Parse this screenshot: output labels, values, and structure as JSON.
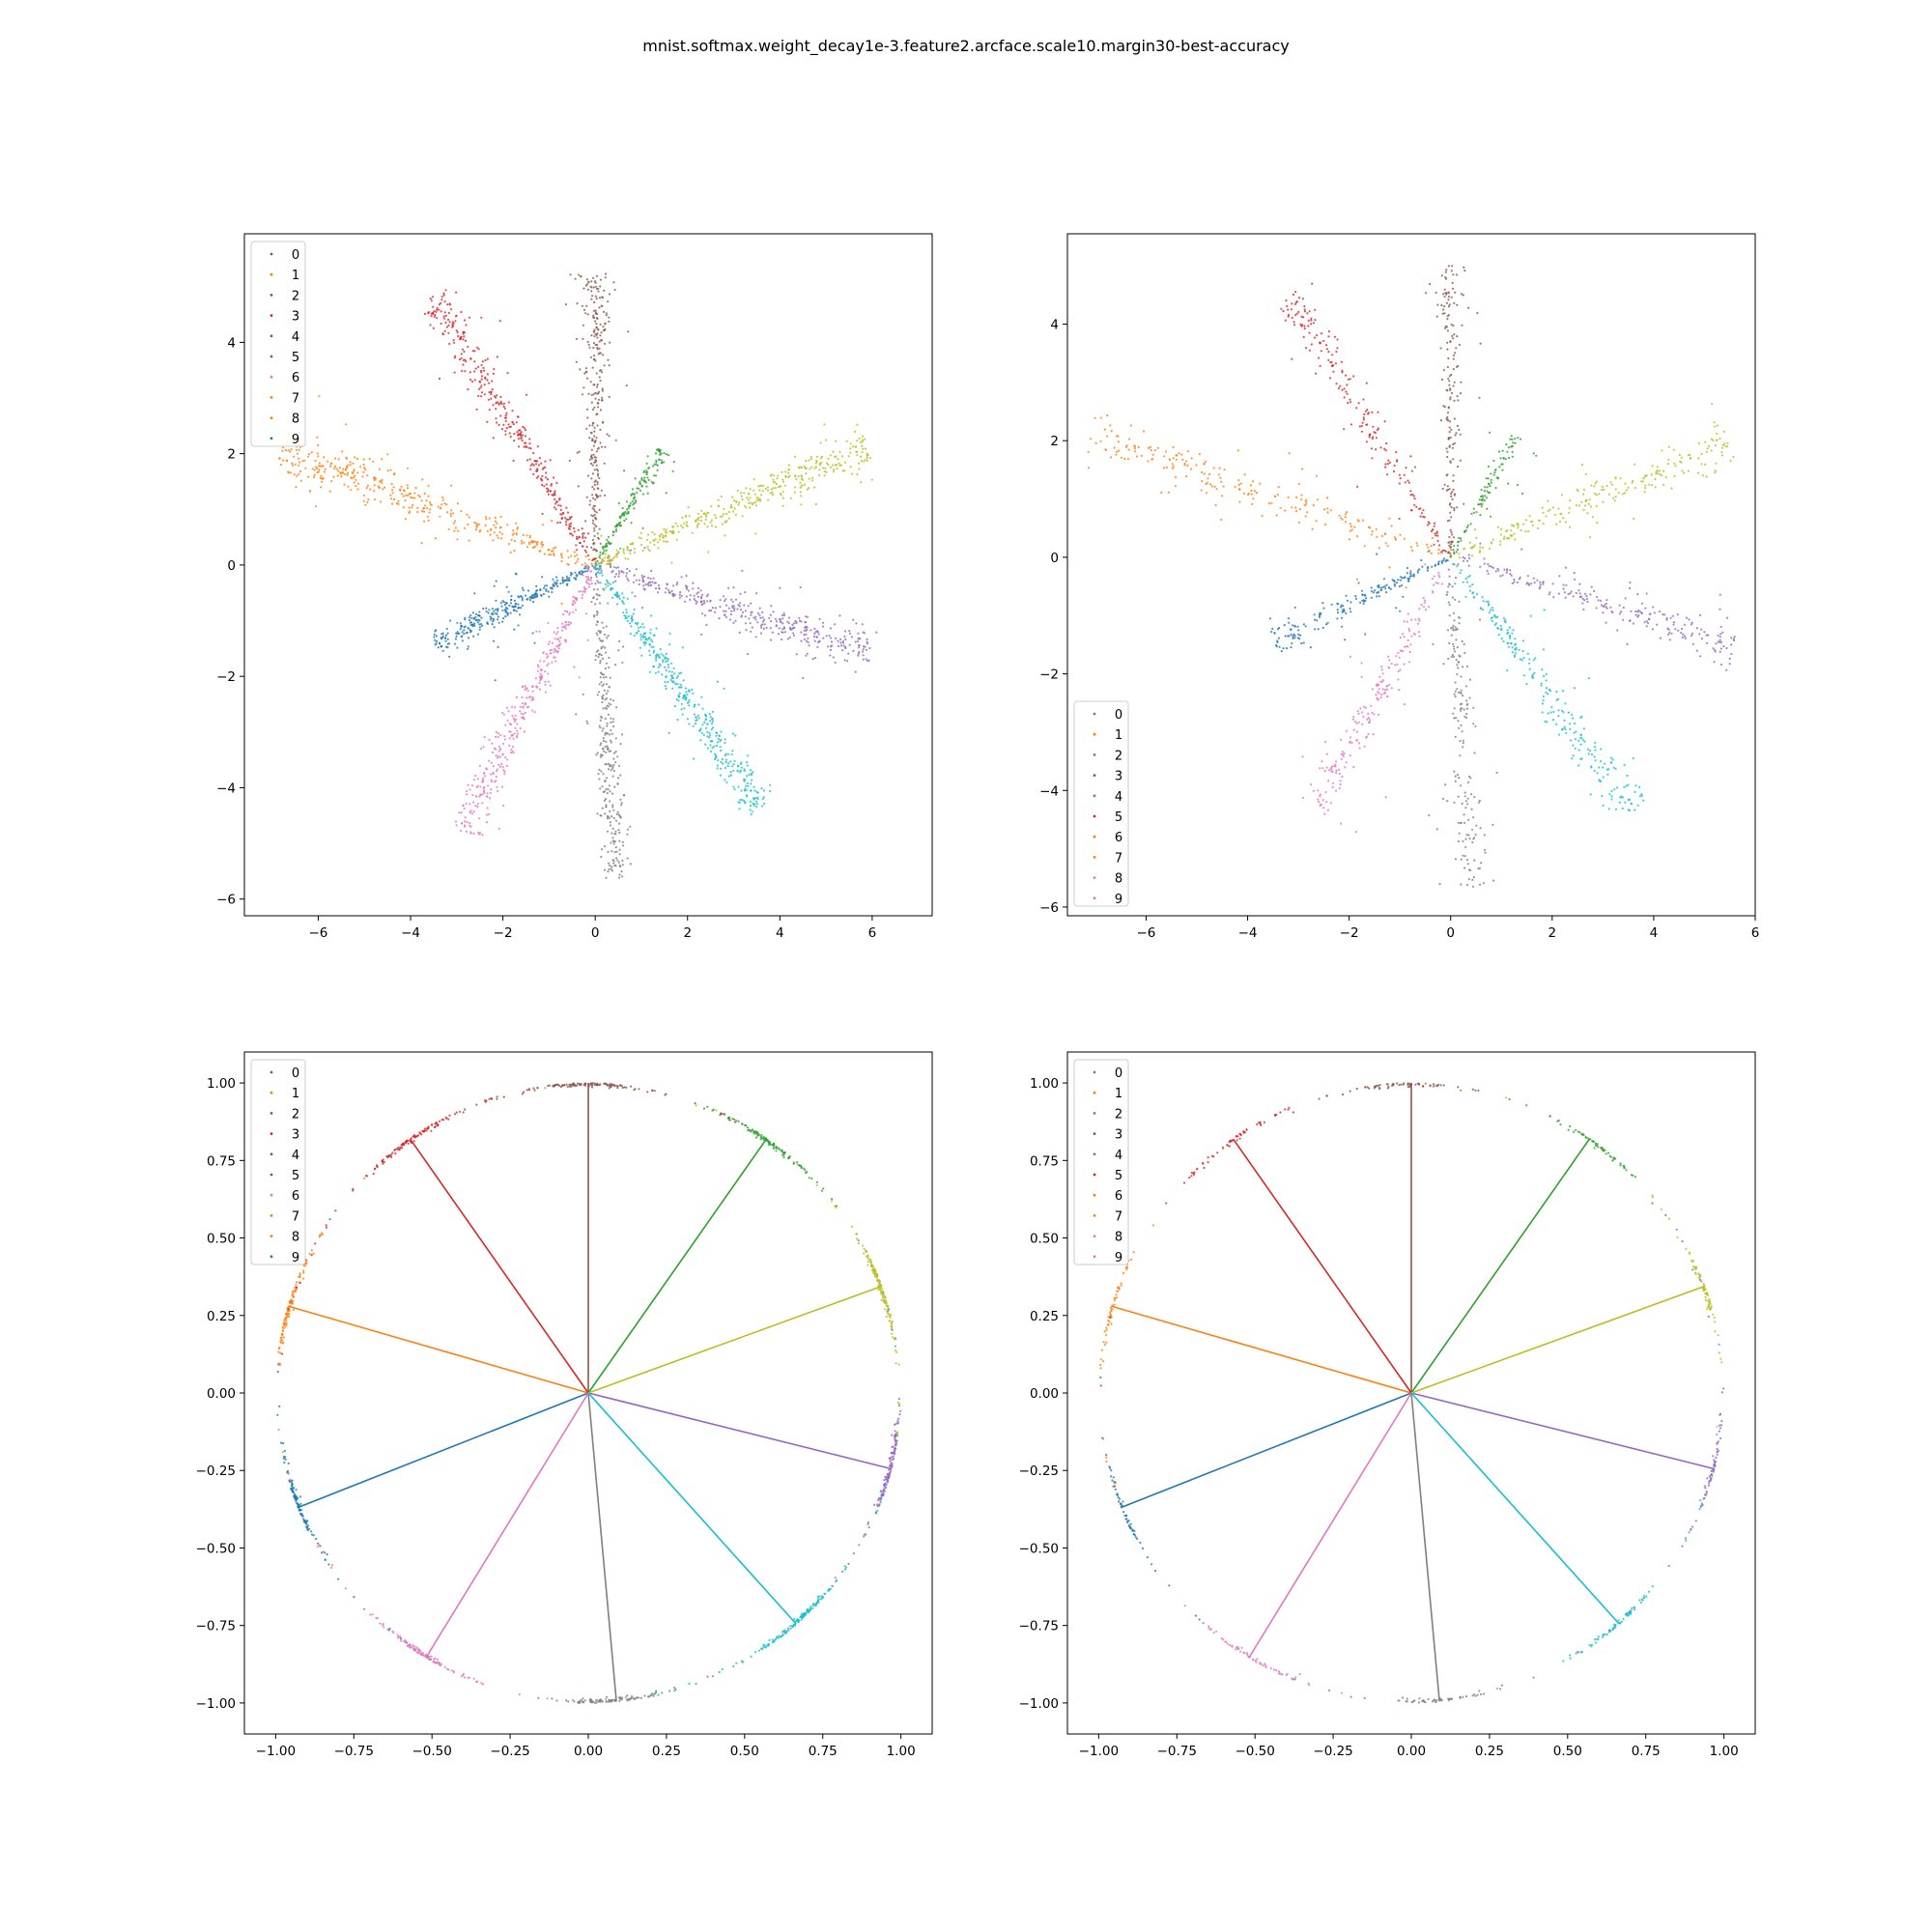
{
  "figure": {
    "title": "mnist.softmax.weight_decay1e-3.feature2.arcface.scale10.margin30-best-accuracy"
  },
  "palette": {
    "0": "#1f77b4",
    "1": "#ff7f0e",
    "2": "#2ca02c",
    "3": "#d62728",
    "4": "#9467bd",
    "5": "#8c564b",
    "6": "#e377c2",
    "7": "#7f7f7f",
    "8": "#bcbd22",
    "9": "#17becf"
  },
  "chart_data": [
    {
      "type": "scatter",
      "title": "",
      "xlabel": "",
      "ylabel": "",
      "xlim": [
        -7.6,
        7.3
      ],
      "ylim": [
        -6.3,
        5.95
      ],
      "xticks": [
        -6,
        -4,
        -2,
        0,
        2,
        4,
        6
      ],
      "yticks": [
        -6,
        -4,
        -2,
        0,
        2,
        4
      ],
      "xtick_labels": [
        "−6",
        "−4",
        "−2",
        "0",
        "2",
        "4",
        "6"
      ],
      "ytick_labels": [
        "−6",
        "−4",
        "−2",
        "0",
        "2",
        "4"
      ],
      "legend": {
        "position": "upper left",
        "entries": [
          "0",
          "1",
          "2",
          "3",
          "4",
          "5",
          "6",
          "7",
          "8",
          "9"
        ],
        "marker_colors": [
          "#8c564b",
          "#ff7f0e",
          "#8c564b",
          "#d62728",
          "#8c564b",
          "#8c564b",
          "#e377c2",
          "#ff7f0e",
          "#ff7f0e",
          "#1f77b4"
        ]
      },
      "series": [
        {
          "name": "0",
          "color": "#1f77b4",
          "tip": [
            -3.5,
            -1.42
          ],
          "n": 300
        },
        {
          "name": "1",
          "color": "#ff7f0e",
          "tip": [
            -6.8,
            2.05
          ],
          "n": 380
        },
        {
          "name": "2",
          "color": "#2ca02c",
          "tip": [
            1.45,
            2.08
          ],
          "n": 150
        },
        {
          "name": "3",
          "color": "#d62728",
          "tip": [
            -3.5,
            4.85
          ],
          "n": 350
        },
        {
          "name": "4",
          "color": "#9467bd",
          "tip": [
            6.0,
            -1.6
          ],
          "n": 380
        },
        {
          "name": "5",
          "color": "#8c564b",
          "tip": [
            0.02,
            5.25
          ],
          "n": 300
        },
        {
          "name": "6",
          "color": "#e377c2",
          "tip": [
            -2.9,
            -4.8
          ],
          "n": 350
        },
        {
          "name": "7",
          "color": "#7f7f7f",
          "tip": [
            0.48,
            -5.65
          ],
          "n": 300
        },
        {
          "name": "8",
          "color": "#bcbd22",
          "tip": [
            5.9,
            2.1
          ],
          "n": 380
        },
        {
          "name": "9",
          "color": "#17becf",
          "tip": [
            3.6,
            -4.35
          ],
          "n": 400
        }
      ]
    },
    {
      "type": "scatter",
      "title": "",
      "xlabel": "",
      "ylabel": "",
      "xlim": [
        -7.55,
        6.0
      ],
      "ylim": [
        -6.15,
        5.55
      ],
      "xticks": [
        -6,
        -4,
        -2,
        0,
        2,
        4,
        6
      ],
      "yticks": [
        -6,
        -4,
        -2,
        0,
        2,
        4
      ],
      "xtick_labels": [
        "−6",
        "−4",
        "−2",
        "0",
        "2",
        "4",
        "6"
      ],
      "ytick_labels": [
        "−6",
        "−4",
        "−2",
        "0",
        "2",
        "4"
      ],
      "legend": {
        "position": "lower left",
        "entries": [
          "0",
          "1",
          "2",
          "3",
          "4",
          "5",
          "6",
          "7",
          "8",
          "9"
        ],
        "marker_colors": [
          "#7f7f7f",
          "#ff7f0e",
          "#7f7f7f",
          "#8c564b",
          "#9467bd",
          "#d62728",
          "#ff7f0e",
          "#ff7f0e",
          "#e377c2",
          "#e377c2"
        ]
      },
      "series": [
        {
          "name": "0",
          "color": "#1f77b4",
          "tip": [
            -3.5,
            -1.45
          ],
          "n": 180
        },
        {
          "name": "1",
          "color": "#ff7f0e",
          "tip": [
            -7.1,
            2.1
          ],
          "n": 220
        },
        {
          "name": "2",
          "color": "#2ca02c",
          "tip": [
            1.3,
            2.1
          ],
          "n": 100
        },
        {
          "name": "3",
          "color": "#d62728",
          "tip": [
            -3.2,
            4.5
          ],
          "n": 200
        },
        {
          "name": "4",
          "color": "#9467bd",
          "tip": [
            5.6,
            -1.5
          ],
          "n": 220
        },
        {
          "name": "5",
          "color": "#8c564b",
          "tip": [
            0.0,
            5.0
          ],
          "n": 180
        },
        {
          "name": "6",
          "color": "#e377c2",
          "tip": [
            -2.65,
            -4.35
          ],
          "n": 200
        },
        {
          "name": "7",
          "color": "#7f7f7f",
          "tip": [
            0.45,
            -5.65
          ],
          "n": 180
        },
        {
          "name": "8",
          "color": "#bcbd22",
          "tip": [
            5.5,
            2.0
          ],
          "n": 220
        },
        {
          "name": "9",
          "color": "#17becf",
          "tip": [
            3.6,
            -4.45
          ],
          "n": 240
        }
      ]
    },
    {
      "type": "scatter",
      "title": "",
      "xlabel": "",
      "ylabel": "",
      "xlim": [
        -1.1,
        1.1
      ],
      "ylim": [
        -1.1,
        1.1
      ],
      "xticks": [
        -1.0,
        -0.75,
        -0.5,
        -0.25,
        0.0,
        0.25,
        0.5,
        0.75,
        1.0
      ],
      "yticks": [
        -1.0,
        -0.75,
        -0.5,
        -0.25,
        0.0,
        0.25,
        0.5,
        0.75,
        1.0
      ],
      "xtick_labels": [
        "−1.00",
        "−0.75",
        "−0.50",
        "−0.25",
        "0.00",
        "0.25",
        "0.50",
        "0.75",
        "1.00"
      ],
      "ytick_labels": [
        "−1.00",
        "−0.75",
        "−0.50",
        "−0.25",
        "0.00",
        "0.25",
        "0.50",
        "0.75",
        "1.00"
      ],
      "legend": {
        "position": "upper left",
        "entries": [
          "0",
          "1",
          "2",
          "3",
          "4",
          "5",
          "6",
          "7",
          "8",
          "9"
        ],
        "marker_colors": [
          "#8c564b",
          "#ff7f0e",
          "#8c564b",
          "#d62728",
          "#8c564b",
          "#8c564b",
          "#e377c2",
          "#ff7f0e",
          "#ff7f0e",
          "#1f77b4"
        ]
      },
      "class_vectors": [
        {
          "name": "0",
          "color": "#1f77b4",
          "end": [
            -0.93,
            -0.37
          ]
        },
        {
          "name": "1",
          "color": "#ff7f0e",
          "end": [
            -0.96,
            0.28
          ]
        },
        {
          "name": "2",
          "color": "#2ca02c",
          "end": [
            0.57,
            0.82
          ]
        },
        {
          "name": "3",
          "color": "#d62728",
          "end": [
            -0.57,
            0.82
          ]
        },
        {
          "name": "4",
          "color": "#9467bd",
          "end": [
            0.97,
            -0.245
          ]
        },
        {
          "name": "5",
          "color": "#8c564b",
          "end": [
            0.0,
            1.0
          ]
        },
        {
          "name": "6",
          "color": "#e377c2",
          "end": [
            -0.52,
            -0.855
          ]
        },
        {
          "name": "7",
          "color": "#7f7f7f",
          "end": [
            0.09,
            -0.995
          ]
        },
        {
          "name": "8",
          "color": "#bcbd22",
          "end": [
            0.94,
            0.345
          ]
        },
        {
          "name": "9",
          "color": "#17becf",
          "end": [
            0.665,
            -0.745
          ]
        }
      ],
      "series": [
        {
          "name": "0",
          "color": "#1f77b4",
          "n": 120
        },
        {
          "name": "1",
          "color": "#ff7f0e",
          "n": 120
        },
        {
          "name": "2",
          "color": "#2ca02c",
          "n": 120
        },
        {
          "name": "3",
          "color": "#d62728",
          "n": 120
        },
        {
          "name": "4",
          "color": "#9467bd",
          "n": 140
        },
        {
          "name": "5",
          "color": "#8c564b",
          "n": 120
        },
        {
          "name": "6",
          "color": "#e377c2",
          "n": 120
        },
        {
          "name": "7",
          "color": "#7f7f7f",
          "n": 110
        },
        {
          "name": "8",
          "color": "#bcbd22",
          "n": 140
        },
        {
          "name": "9",
          "color": "#17becf",
          "n": 150
        }
      ]
    },
    {
      "type": "scatter",
      "title": "",
      "xlabel": "",
      "ylabel": "",
      "xlim": [
        -1.1,
        1.1
      ],
      "ylim": [
        -1.1,
        1.1
      ],
      "xticks": [
        -1.0,
        -0.75,
        -0.5,
        -0.25,
        0.0,
        0.25,
        0.5,
        0.75,
        1.0
      ],
      "yticks": [
        -1.0,
        -0.75,
        -0.5,
        -0.25,
        0.0,
        0.25,
        0.5,
        0.75,
        1.0
      ],
      "xtick_labels": [
        "−1.00",
        "−0.75",
        "−0.50",
        "−0.25",
        "0.00",
        "0.25",
        "0.50",
        "0.75",
        "1.00"
      ],
      "ytick_labels": [
        "−1.00",
        "−0.75",
        "−0.50",
        "−0.25",
        "0.00",
        "0.25",
        "0.50",
        "0.75",
        "1.00"
      ],
      "legend": {
        "position": "upper left",
        "entries": [
          "0",
          "1",
          "2",
          "3",
          "4",
          "5",
          "6",
          "7",
          "8",
          "9"
        ],
        "marker_colors": [
          "#7f7f7f",
          "#ff7f0e",
          "#7f7f7f",
          "#8c564b",
          "#9467bd",
          "#d62728",
          "#ff7f0e",
          "#ff7f0e",
          "#e377c2",
          "#e377c2"
        ]
      },
      "class_vectors": [
        {
          "name": "0",
          "color": "#1f77b4",
          "end": [
            -0.93,
            -0.37
          ]
        },
        {
          "name": "1",
          "color": "#ff7f0e",
          "end": [
            -0.96,
            0.28
          ]
        },
        {
          "name": "2",
          "color": "#2ca02c",
          "end": [
            0.57,
            0.82
          ]
        },
        {
          "name": "3",
          "color": "#d62728",
          "end": [
            -0.57,
            0.82
          ]
        },
        {
          "name": "4",
          "color": "#9467bd",
          "end": [
            0.97,
            -0.245
          ]
        },
        {
          "name": "5",
          "color": "#8c564b",
          "end": [
            0.0,
            1.0
          ]
        },
        {
          "name": "6",
          "color": "#e377c2",
          "end": [
            -0.52,
            -0.855
          ]
        },
        {
          "name": "7",
          "color": "#7f7f7f",
          "end": [
            0.09,
            -0.995
          ]
        },
        {
          "name": "8",
          "color": "#bcbd22",
          "end": [
            0.94,
            0.345
          ]
        },
        {
          "name": "9",
          "color": "#17becf",
          "end": [
            0.665,
            -0.745
          ]
        }
      ],
      "series": [
        {
          "name": "0",
          "color": "#1f77b4",
          "n": 60
        },
        {
          "name": "1",
          "color": "#ff7f0e",
          "n": 60
        },
        {
          "name": "2",
          "color": "#2ca02c",
          "n": 60
        },
        {
          "name": "3",
          "color": "#d62728",
          "n": 60
        },
        {
          "name": "4",
          "color": "#9467bd",
          "n": 70
        },
        {
          "name": "5",
          "color": "#8c564b",
          "n": 60
        },
        {
          "name": "6",
          "color": "#e377c2",
          "n": 60
        },
        {
          "name": "7",
          "color": "#7f7f7f",
          "n": 55
        },
        {
          "name": "8",
          "color": "#bcbd22",
          "n": 70
        },
        {
          "name": "9",
          "color": "#17becf",
          "n": 75
        }
      ]
    }
  ]
}
